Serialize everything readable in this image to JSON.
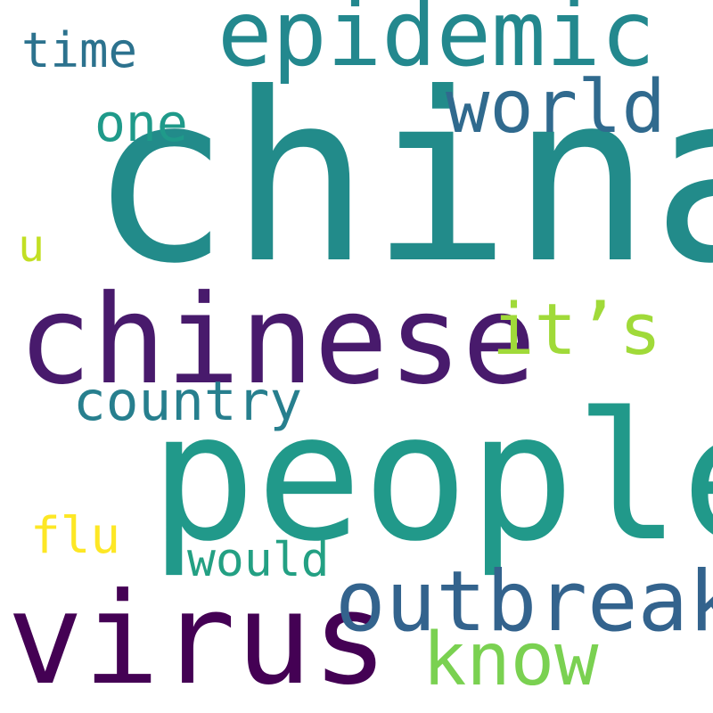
{
  "words": [
    {
      "text": "china",
      "color": "#228b8a"
    },
    {
      "text": "people",
      "color": "#21998a"
    },
    {
      "text": "chinese",
      "color": "#481a6c"
    },
    {
      "text": "virus",
      "color": "#440154"
    },
    {
      "text": "epidemic",
      "color": "#23888e"
    },
    {
      "text": "outbreak",
      "color": "#33638d"
    },
    {
      "text": "world",
      "color": "#306a8e"
    },
    {
      "text": "know",
      "color": "#7ad151"
    },
    {
      "text": "it’s",
      "color": "#a0da39"
    },
    {
      "text": "one",
      "color": "#1f9a8a"
    },
    {
      "text": "country",
      "color": "#277f8e"
    },
    {
      "text": "flu",
      "color": "#fde725"
    },
    {
      "text": "would",
      "color": "#23a083"
    },
    {
      "text": "time",
      "color": "#2c728e"
    },
    {
      "text": "u",
      "color": "#c2df23"
    }
  ]
}
